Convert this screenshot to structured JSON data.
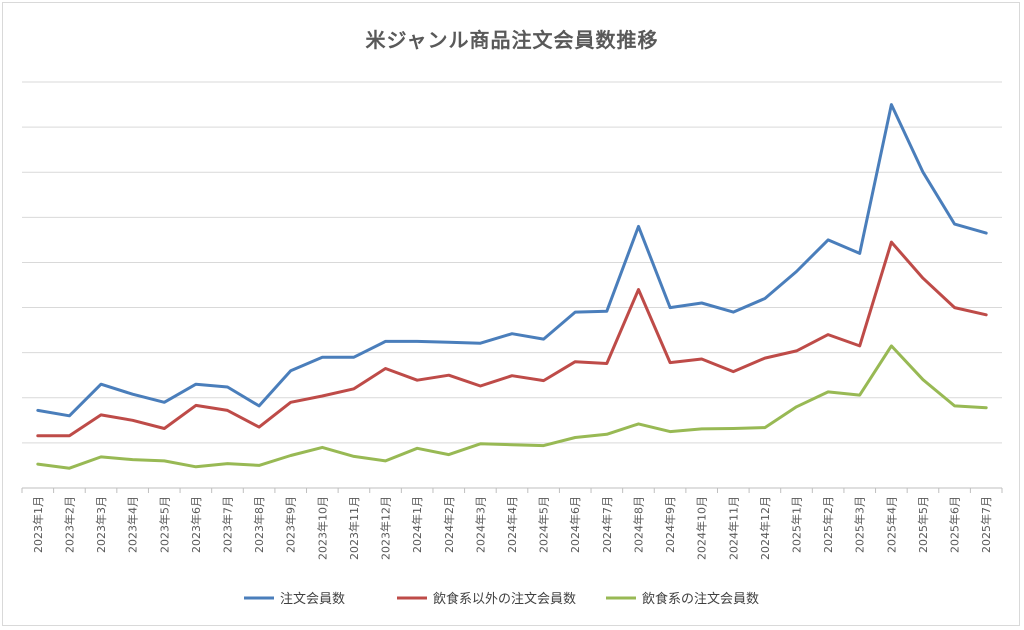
{
  "chart_data": {
    "type": "line",
    "title": "米ジャンル商品注文会員数推移",
    "xlabel": "",
    "ylabel": "",
    "y_tick_labels_shown": false,
    "grid": "horizontal",
    "legend_position": "bottom",
    "categories": [
      "2023年1月",
      "2023年2月",
      "2023年3月",
      "2023年4月",
      "2023年5月",
      "2023年6月",
      "2023年7月",
      "2023年8月",
      "2023年9月",
      "2023年10月",
      "2023年11月",
      "2023年12月",
      "2024年1月",
      "2024年2月",
      "2024年3月",
      "2024年4月",
      "2024年5月",
      "2024年6月",
      "2024年7月",
      "2024年8月",
      "2024年9月",
      "2024年10月",
      "2024年11月",
      "2024年12月",
      "2025年1月",
      "2025年2月",
      "2025年3月",
      "2025年4月",
      "2025年5月",
      "2025年6月",
      "2025年7月"
    ],
    "ylim": [
      0,
      9
    ],
    "series": [
      {
        "name": "注文会員数",
        "color": "#4a7ebb",
        "values": [
          1.72,
          1.6,
          2.3,
          2.08,
          1.9,
          2.3,
          2.24,
          1.82,
          2.6,
          2.9,
          2.9,
          3.25,
          3.25,
          3.23,
          3.21,
          3.42,
          3.3,
          3.9,
          3.92,
          5.8,
          4.0,
          4.1,
          3.9,
          4.2,
          4.8,
          5.5,
          5.2,
          8.5,
          7.0,
          5.85,
          5.65
        ]
      },
      {
        "name": "飲食系以外の注文会員数",
        "color": "#be4b48",
        "values": [
          1.16,
          1.16,
          1.62,
          1.5,
          1.32,
          1.83,
          1.72,
          1.35,
          1.9,
          2.04,
          2.2,
          2.65,
          2.39,
          2.5,
          2.26,
          2.49,
          2.38,
          2.8,
          2.76,
          4.4,
          2.78,
          2.86,
          2.58,
          2.88,
          3.04,
          3.4,
          3.15,
          5.45,
          4.65,
          4.0,
          3.84
        ]
      },
      {
        "name": "飲食系の注文会員数",
        "color": "#98b954",
        "values": [
          0.53,
          0.44,
          0.69,
          0.63,
          0.6,
          0.47,
          0.54,
          0.5,
          0.72,
          0.9,
          0.7,
          0.6,
          0.88,
          0.74,
          0.98,
          0.96,
          0.94,
          1.12,
          1.19,
          1.42,
          1.25,
          1.31,
          1.32,
          1.34,
          1.8,
          2.13,
          2.06,
          3.15,
          2.4,
          1.82,
          1.78
        ]
      }
    ]
  }
}
